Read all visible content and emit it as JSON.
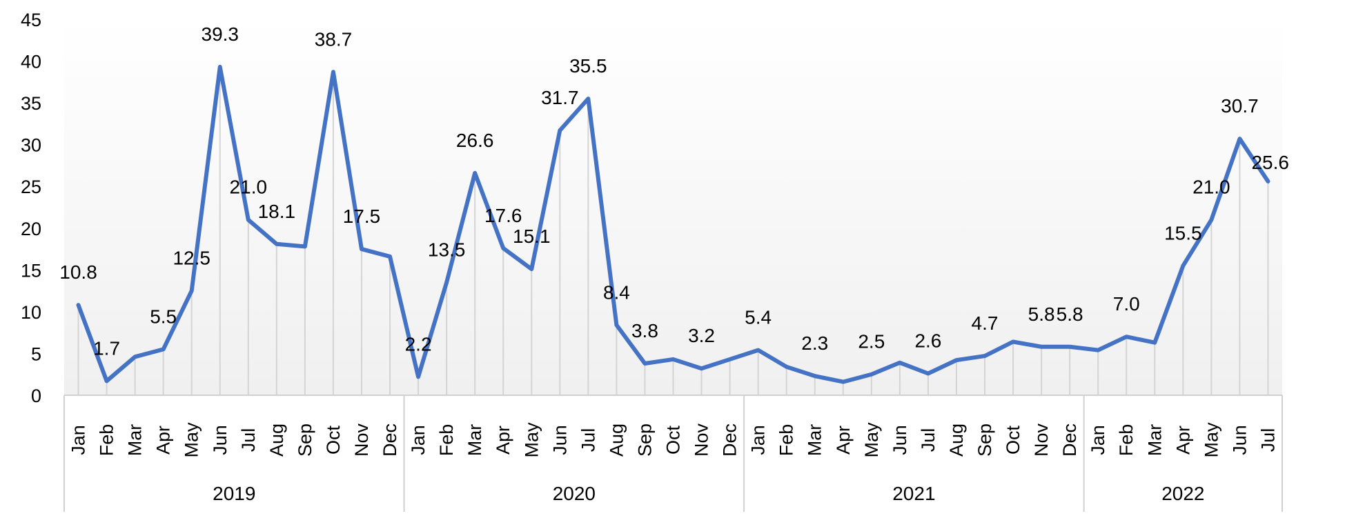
{
  "chart_data": {
    "type": "line",
    "title": "",
    "xlabel": "",
    "ylabel": "",
    "ylim": [
      0,
      45
    ],
    "yticks": [
      0,
      5,
      10,
      15,
      20,
      25,
      30,
      35,
      40,
      45
    ],
    "grid": "vertical drop lines",
    "legend": "none",
    "line_color": "#4472C4",
    "groups": [
      {
        "year": "2019",
        "months": [
          "Jan",
          "Feb",
          "Mar",
          "Apr",
          "May",
          "Jun",
          "Jul",
          "Aug",
          "Sep",
          "Oct",
          "Nov",
          "Dec"
        ]
      },
      {
        "year": "2020",
        "months": [
          "Jan",
          "Feb",
          "Mar",
          "Apr",
          "May",
          "Jun",
          "Jul",
          "Aug",
          "Sep",
          "Oct",
          "Nov",
          "Dec"
        ]
      },
      {
        "year": "2021",
        "months": [
          "Jan",
          "Feb",
          "Mar",
          "Apr",
          "May",
          "Jun",
          "Jul",
          "Aug",
          "Sep",
          "Oct",
          "Nov",
          "Dec"
        ]
      },
      {
        "year": "2022",
        "months": [
          "Jan",
          "Feb",
          "Mar",
          "Apr",
          "May",
          "Jun",
          "Jul"
        ]
      }
    ],
    "values": [
      10.8,
      1.7,
      4.6,
      5.5,
      12.5,
      39.3,
      21.0,
      18.1,
      17.8,
      38.7,
      17.5,
      16.6,
      2.2,
      13.5,
      26.6,
      17.6,
      15.1,
      31.7,
      35.5,
      8.4,
      3.8,
      4.3,
      3.2,
      4.3,
      5.4,
      3.4,
      2.3,
      1.6,
      2.5,
      3.9,
      2.6,
      4.2,
      4.7,
      6.4,
      5.8,
      5.8,
      5.4,
      7.0,
      6.3,
      15.5,
      21.0,
      30.7,
      25.6
    ],
    "data_labels": [
      "10.8",
      "1.7",
      "",
      "5.5",
      "12.5",
      "39.3",
      "21.0",
      "18.1",
      "",
      "38.7",
      "17.5",
      "",
      "2.2",
      "13.5",
      "26.6",
      "17.6",
      "15.1",
      "31.7",
      "35.5",
      "8.4",
      "3.8",
      "",
      "3.2",
      "",
      "5.4",
      "",
      "2.3",
      "",
      "2.5",
      "",
      "2.6",
      "",
      "4.7",
      "",
      "5.8",
      "5.8",
      "",
      "7.0",
      "",
      "15.5",
      "21.0",
      "30.7",
      "25.6"
    ]
  }
}
